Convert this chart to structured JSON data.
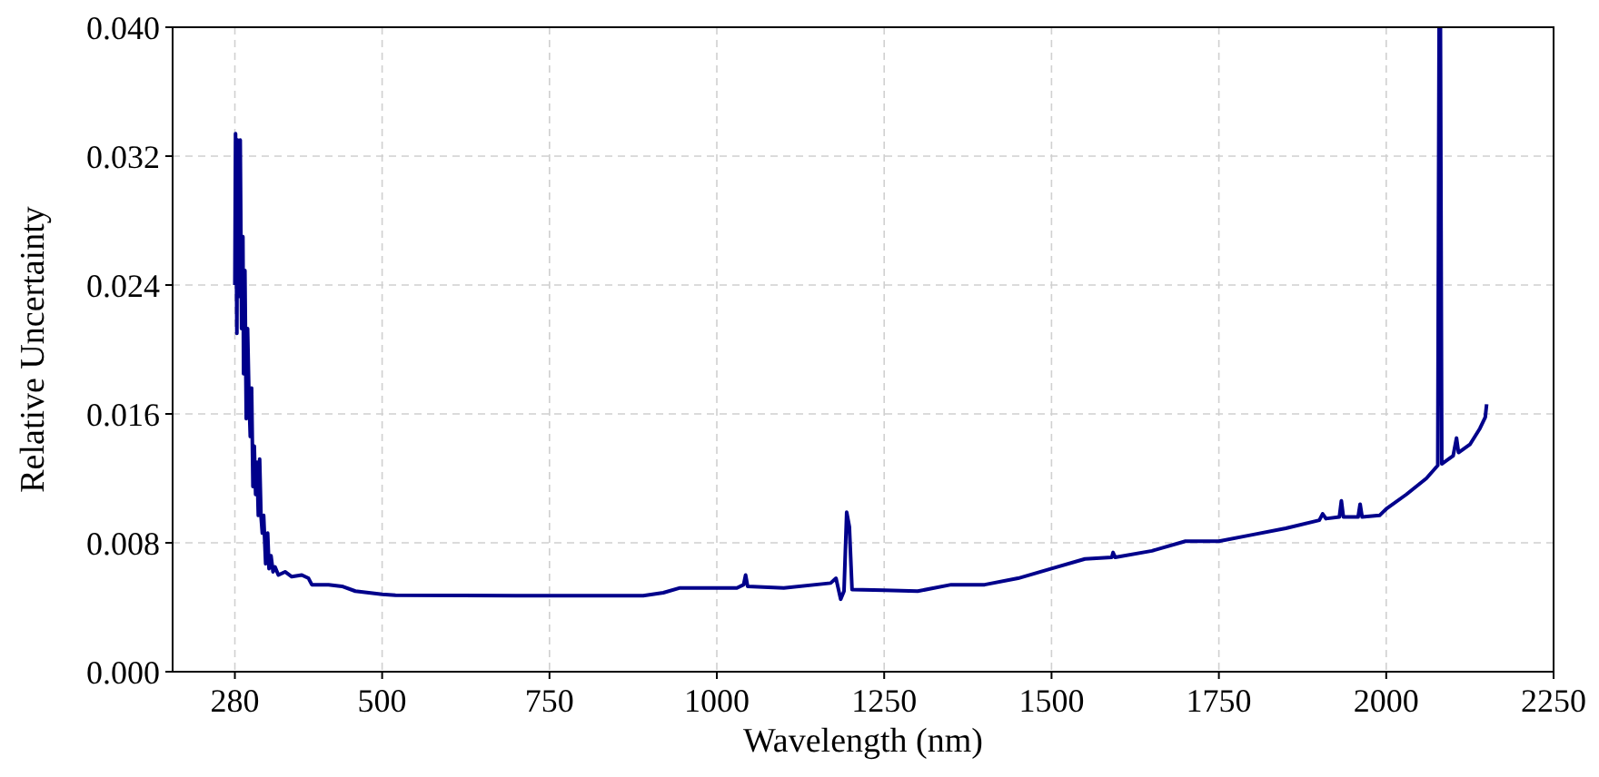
{
  "chart_data": {
    "type": "line",
    "xlabel": "Wavelength (nm)",
    "ylabel": "Relative Uncertainty",
    "xlim": [
      187,
      2250
    ],
    "xticks": [
      280,
      500,
      750,
      1000,
      1250,
      1500,
      1750,
      2000,
      2250
    ],
    "ylim": [
      0,
      0.04
    ],
    "yticks": [
      {
        "value": 0,
        "label": "0.000"
      },
      {
        "value": 0.008,
        "label": "0.008"
      },
      {
        "value": 0.016,
        "label": "0.016"
      },
      {
        "value": 0.024,
        "label": "0.024"
      },
      {
        "value": 0.032,
        "label": "0.032"
      },
      {
        "value": 0.04,
        "label": "0.040"
      }
    ],
    "grid": true,
    "line_style": "solid",
    "marker": "none",
    "series": [
      {
        "color": "#00008b",
        "x": [
          280,
          281,
          283,
          284,
          286,
          288,
          290,
          292,
          293,
          295,
          297,
          299,
          301,
          303,
          305,
          307,
          309,
          311,
          313,
          315,
          317,
          319,
          321,
          323,
          326,
          329,
          331,
          334,
          337,
          340,
          345,
          355,
          365,
          380,
          390,
          395,
          420,
          440,
          460,
          480,
          500,
          520,
          700,
          890,
          920,
          945,
          1030,
          1040,
          1043,
          1046,
          1100,
          1170,
          1178,
          1185,
          1190,
          1194,
          1198,
          1202,
          1250,
          1300,
          1350,
          1400,
          1450,
          1500,
          1550,
          1590,
          1592,
          1595,
          1650,
          1700,
          1750,
          1800,
          1850,
          1900,
          1905,
          1910,
          1930,
          1933,
          1936,
          1958,
          1961,
          1964,
          1990,
          2000,
          2030,
          2060,
          2077,
          2079,
          2081,
          2083,
          2100,
          2105,
          2108,
          2125,
          2140,
          2148,
          2150
        ],
        "values": [
          0.024,
          0.0334,
          0.021,
          0.033,
          0.0233,
          0.033,
          0.0213,
          0.027,
          0.0185,
          0.0249,
          0.0157,
          0.0213,
          0.0172,
          0.0146,
          0.0176,
          0.0115,
          0.014,
          0.011,
          0.013,
          0.0097,
          0.0132,
          0.0097,
          0.0086,
          0.0097,
          0.0067,
          0.0086,
          0.0064,
          0.0072,
          0.0062,
          0.0065,
          0.006,
          0.0062,
          0.0059,
          0.006,
          0.0058,
          0.0054,
          0.0054,
          0.0053,
          0.005,
          0.0049,
          0.0048,
          0.00475,
          0.00472,
          0.00472,
          0.0049,
          0.0052,
          0.0052,
          0.0054,
          0.006,
          0.0053,
          0.0052,
          0.0055,
          0.0058,
          0.0045,
          0.005,
          0.0099,
          0.009,
          0.0051,
          0.00505,
          0.005,
          0.0054,
          0.0054,
          0.0058,
          0.0064,
          0.007,
          0.0071,
          0.0074,
          0.0071,
          0.0075,
          0.0081,
          0.0081,
          0.0085,
          0.0089,
          0.0094,
          0.0098,
          0.0095,
          0.0096,
          0.0106,
          0.0096,
          0.0096,
          0.0104,
          0.0096,
          0.0097,
          0.0101,
          0.011,
          0.012,
          0.0128,
          0.04,
          0.04,
          0.0129,
          0.0134,
          0.0145,
          0.0136,
          0.0141,
          0.0151,
          0.0158,
          0.0166
        ]
      }
    ]
  }
}
